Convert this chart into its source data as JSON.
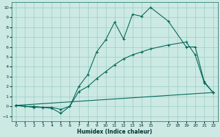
{
  "xlabel": "Humidex (Indice chaleur)",
  "bg_color": "#cce9e4",
  "grid_color": "#99ccc4",
  "line_color": "#006655",
  "xlim": [
    -0.5,
    22.5
  ],
  "ylim": [
    -1.5,
    10.5
  ],
  "xticks": [
    0,
    1,
    2,
    3,
    4,
    5,
    6,
    7,
    8,
    9,
    10,
    11,
    12,
    13,
    14,
    15,
    17,
    18,
    19,
    20,
    21,
    22
  ],
  "yticks": [
    -1,
    0,
    1,
    2,
    3,
    4,
    5,
    6,
    7,
    8,
    9,
    10
  ],
  "series1_x": [
    0,
    1,
    2,
    3,
    4,
    5,
    6,
    7,
    8,
    9,
    10,
    11,
    12,
    13,
    14,
    15,
    17,
    19,
    20,
    21,
    22
  ],
  "series1_y": [
    0.1,
    0.0,
    -0.1,
    -0.1,
    -0.2,
    -0.7,
    0.0,
    2.0,
    3.2,
    5.5,
    6.7,
    8.5,
    6.8,
    9.3,
    9.1,
    10.0,
    8.6,
    6.0,
    6.0,
    2.5,
    1.4
  ],
  "series2_x": [
    0,
    1,
    2,
    3,
    4,
    5,
    6,
    7,
    8,
    9,
    10,
    11,
    12,
    13,
    14,
    15,
    17,
    19,
    20,
    21,
    22
  ],
  "series2_y": [
    0.1,
    0.0,
    0.0,
    -0.1,
    -0.1,
    -0.3,
    0.0,
    1.5,
    2.0,
    2.8,
    3.5,
    4.2,
    4.8,
    5.2,
    5.5,
    5.8,
    6.2,
    6.5,
    5.2,
    2.4,
    1.4
  ],
  "series3_x": [
    0,
    22
  ],
  "series3_y": [
    0.1,
    1.4
  ]
}
